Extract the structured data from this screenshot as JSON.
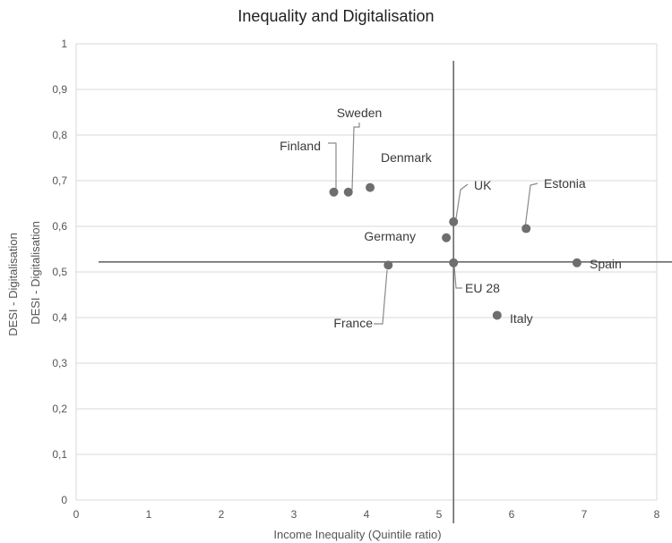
{
  "chart_data": {
    "type": "scatter",
    "title": "Inequality and Digitalisation",
    "xlabel": "Income Inequality (Quintile ratio)",
    "ylabel_outer": "DESI - Digitalisation",
    "ylabel_inner": "DESI - Digitalisation",
    "xlim": [
      0,
      8
    ],
    "ylim": [
      0,
      1
    ],
    "grid": "horizontal",
    "x_ticks": [
      "0",
      "1",
      "2",
      "3",
      "4",
      "5",
      "6",
      "7",
      "8"
    ],
    "y_ticks": [
      "0",
      "0,1",
      "0,2",
      "0,3",
      "0,4",
      "0,5",
      "0,6",
      "0,7",
      "0,8",
      "0,9",
      "1"
    ],
    "reference_lines": {
      "vertical_x": 5.2,
      "horizontal_y": 0.52
    },
    "points": [
      {
        "label": "Finland",
        "x": 3.55,
        "y": 0.675
      },
      {
        "label": "Sweden",
        "x": 3.75,
        "y": 0.675
      },
      {
        "label": "Denmark",
        "x": 4.05,
        "y": 0.685
      },
      {
        "label": "UK",
        "x": 5.2,
        "y": 0.61
      },
      {
        "label": "Estonia",
        "x": 6.2,
        "y": 0.595
      },
      {
        "label": "Germany",
        "x": 5.1,
        "y": 0.575
      },
      {
        "label": "EU 28",
        "x": 5.2,
        "y": 0.52
      },
      {
        "label": "France",
        "x": 4.3,
        "y": 0.515
      },
      {
        "label": "Spain",
        "x": 6.9,
        "y": 0.52
      },
      {
        "label": "Italy",
        "x": 5.8,
        "y": 0.405
      }
    ],
    "colors": {
      "point": "#6e6e6e",
      "gridline": "#d8d8d8",
      "refline": "#6a6a6a",
      "text": "#3a3a3a"
    }
  }
}
